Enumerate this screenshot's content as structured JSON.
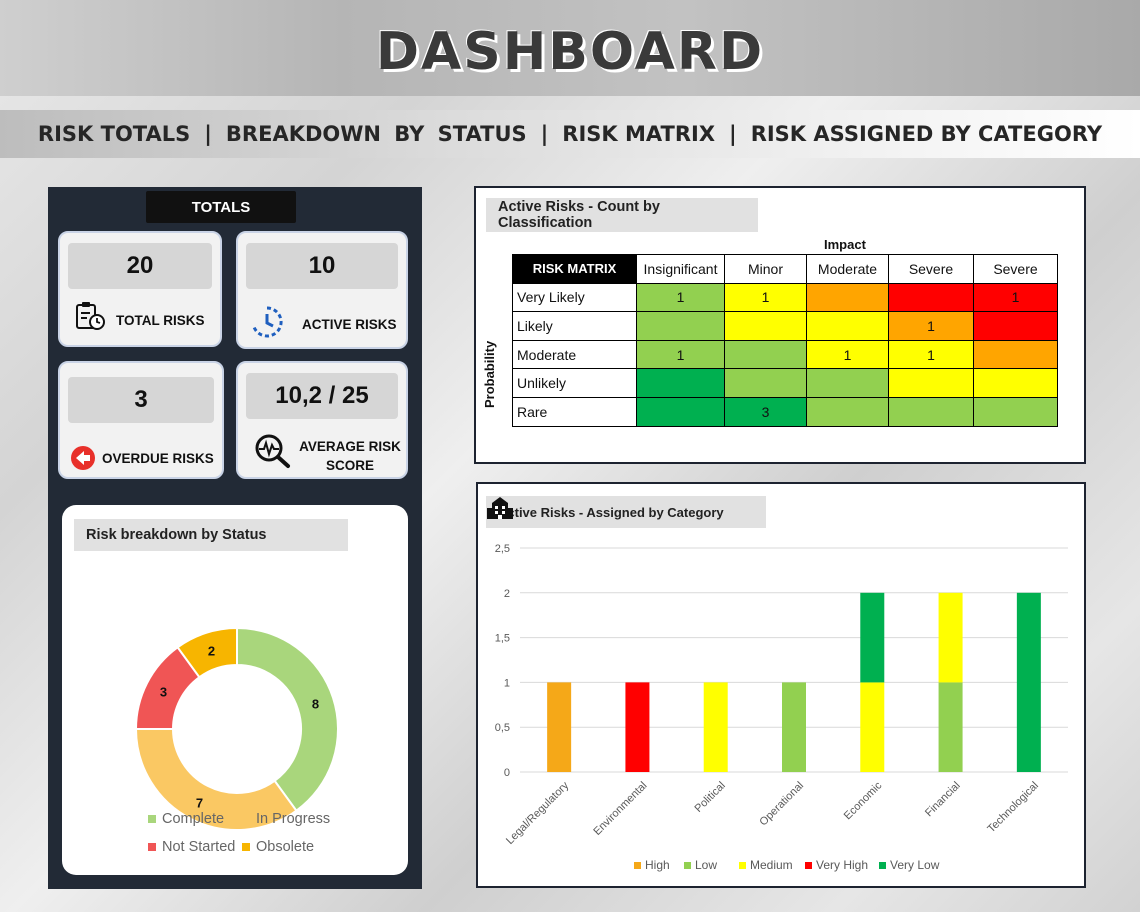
{
  "header": {
    "title": "DASHBOARD",
    "nav": [
      "RISK TOTALS",
      "BREAKDOWN BY STATUS",
      "RISK MATRIX",
      "RISK ASSIGNED BY CATEGORY"
    ],
    "separator": "|"
  },
  "totals": {
    "tab_label": "TOTALS",
    "total_risks": {
      "value": "20",
      "label": "TOTAL RISKS",
      "icon": "clipboard-clock-icon"
    },
    "active_risks": {
      "value": "10",
      "label": "ACTIVE RISKS",
      "icon": "clock-progress-icon"
    },
    "overdue_risks": {
      "value": "3",
      "label": "OVERDUE RISKS",
      "icon": "overdue-arrow-icon"
    },
    "average_score": {
      "value": "10,2 / 25",
      "label_line1": "AVERAGE RISK",
      "label_line2": "SCORE",
      "icon": "magnifier-pulse-icon"
    }
  },
  "status_breakdown": {
    "title": "Risk breakdown by Status",
    "chart_data": {
      "type": "pie",
      "slices": [
        {
          "name": "Complete",
          "value": 8,
          "color": "#a9d67c"
        },
        {
          "name": "In Progress",
          "value": 7,
          "color": "#fac863"
        },
        {
          "name": "Not Started",
          "value": 3,
          "color": "#f05555"
        },
        {
          "name": "Obsolete",
          "value": 2,
          "color": "#f7b500"
        }
      ]
    }
  },
  "risk_matrix": {
    "title": "Active Risks - Count by Classification",
    "corner_label": "RISK MATRIX",
    "impact_label": "Impact",
    "probability_label": "Probability",
    "columns": [
      "Insignificant",
      "Minor",
      "Moderate",
      "Severe",
      "Severe"
    ],
    "rows": [
      {
        "label": "Very Likely",
        "cells": [
          "1",
          "1",
          "",
          "",
          "1"
        ],
        "colors": [
          "#92d050",
          "#ffff00",
          "#ffa500",
          "#ff0000",
          "#ff0000"
        ]
      },
      {
        "label": "Likely",
        "cells": [
          "",
          "",
          "",
          "1",
          ""
        ],
        "colors": [
          "#92d050",
          "#ffff00",
          "#ffff00",
          "#ffa500",
          "#ff0000"
        ]
      },
      {
        "label": "Moderate",
        "cells": [
          "1",
          "",
          "1",
          "1",
          ""
        ],
        "colors": [
          "#92d050",
          "#92d050",
          "#ffff00",
          "#ffff00",
          "#ffa500"
        ]
      },
      {
        "label": "Unlikely",
        "cells": [
          "",
          "",
          "",
          "",
          ""
        ],
        "colors": [
          "#00b050",
          "#92d050",
          "#92d050",
          "#ffff00",
          "#ffff00"
        ]
      },
      {
        "label": "Rare",
        "cells": [
          "",
          "3",
          "",
          "",
          ""
        ],
        "colors": [
          "#00b050",
          "#00b050",
          "#92d050",
          "#92d050",
          "#92d050"
        ]
      }
    ]
  },
  "category_chart": {
    "title": "Active Risks  -  Assigned by Category",
    "title_icon": "building-icon",
    "chart_data": {
      "type": "bar",
      "stacked": true,
      "categories": [
        "Legal/Regulatory",
        "Environmental",
        "Political",
        "Operational",
        "Economic",
        "Financial",
        "Technological"
      ],
      "series": [
        {
          "name": "High",
          "color": "#f5a818",
          "values": [
            1,
            0,
            0,
            0,
            0,
            0,
            0
          ]
        },
        {
          "name": "Low",
          "color": "#92d050",
          "values": [
            0,
            0,
            0,
            1,
            0,
            1,
            0
          ]
        },
        {
          "name": "Medium",
          "color": "#ffff00",
          "values": [
            0,
            0,
            1,
            0,
            1,
            1,
            0
          ]
        },
        {
          "name": "Very High",
          "color": "#ff0000",
          "values": [
            0,
            1,
            0,
            0,
            0,
            0,
            0
          ]
        },
        {
          "name": "Very Low",
          "color": "#00b050",
          "values": [
            0,
            0,
            0,
            0,
            1,
            0,
            2
          ]
        }
      ],
      "yticks": [
        "0",
        "0,5",
        "1",
        "1,5",
        "2",
        "2,5"
      ],
      "ylim": [
        0,
        2.5
      ],
      "grid": true,
      "legend": "bottom"
    }
  }
}
